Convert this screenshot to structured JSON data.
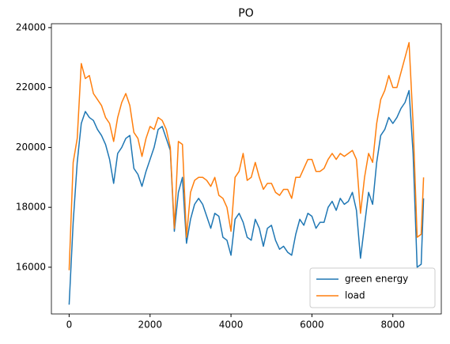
{
  "chart_data": {
    "type": "line",
    "title": "PO",
    "x": [
      0,
      100,
      200,
      300,
      400,
      500,
      600,
      700,
      800,
      900,
      1000,
      1100,
      1200,
      1300,
      1400,
      1500,
      1600,
      1700,
      1800,
      1900,
      2000,
      2100,
      2200,
      2300,
      2400,
      2500,
      2600,
      2700,
      2800,
      2900,
      3000,
      3100,
      3200,
      3300,
      3400,
      3500,
      3600,
      3700,
      3800,
      3900,
      4000,
      4100,
      4200,
      4300,
      4400,
      4500,
      4600,
      4700,
      4800,
      4900,
      5000,
      5100,
      5200,
      5300,
      5400,
      5500,
      5600,
      5700,
      5800,
      5900,
      6000,
      6100,
      6200,
      6300,
      6400,
      6500,
      6600,
      6700,
      6800,
      6900,
      7000,
      7100,
      7200,
      7300,
      7400,
      7500,
      7600,
      7700,
      7800,
      7900,
      8000,
      8100,
      8200,
      8300,
      8400,
      8500,
      8600,
      8700,
      8759
    ],
    "series": [
      {
        "name": "green energy",
        "color": "#1f77b4",
        "values": [
          14750,
          17500,
          19500,
          20800,
          21200,
          21000,
          20900,
          20600,
          20400,
          20100,
          19600,
          18800,
          19800,
          20000,
          20300,
          20400,
          19300,
          19100,
          18700,
          19200,
          19600,
          20000,
          20600,
          20700,
          20300,
          19900,
          17200,
          18500,
          19000,
          16800,
          17600,
          18100,
          18300,
          18100,
          17700,
          17300,
          17800,
          17700,
          17000,
          16900,
          16400,
          17600,
          17800,
          17500,
          17000,
          16900,
          17600,
          17300,
          16700,
          17300,
          17400,
          16900,
          16600,
          16700,
          16500,
          16400,
          17100,
          17600,
          17400,
          17800,
          17700,
          17300,
          17500,
          17500,
          18000,
          18200,
          17900,
          18300,
          18100,
          18200,
          18500,
          17900,
          16300,
          17400,
          18500,
          18100,
          19500,
          20400,
          20600,
          21000,
          20800,
          21000,
          21300,
          21500,
          21900,
          19800,
          16000,
          16100,
          18300
        ]
      },
      {
        "name": "load",
        "color": "#ff7f0e",
        "values": [
          15900,
          19500,
          20300,
          22800,
          22300,
          22400,
          21800,
          21600,
          21400,
          21000,
          20800,
          20200,
          21000,
          21500,
          21800,
          21400,
          20500,
          20300,
          19700,
          20300,
          20700,
          20600,
          21000,
          20900,
          20600,
          20000,
          17300,
          20200,
          20100,
          17000,
          18500,
          18900,
          19000,
          19000,
          18900,
          18700,
          19000,
          18400,
          18300,
          18000,
          17200,
          19000,
          19200,
          19800,
          18900,
          19000,
          19500,
          19000,
          18600,
          18800,
          18800,
          18500,
          18400,
          18600,
          18600,
          18300,
          19000,
          19000,
          19300,
          19600,
          19600,
          19200,
          19200,
          19300,
          19600,
          19800,
          19600,
          19800,
          19700,
          19800,
          19900,
          19600,
          17800,
          19000,
          19800,
          19500,
          20800,
          21600,
          21900,
          22400,
          22000,
          22000,
          22500,
          23000,
          23500,
          20800,
          17000,
          17100,
          19000
        ]
      }
    ],
    "xlim": [
      -438,
      9197
    ],
    "xticks": [
      0,
      2000,
      4000,
      6000,
      8000
    ],
    "ylim": [
      14440,
      24130
    ],
    "yticks": [
      16000,
      18000,
      20000,
      22000,
      24000
    ],
    "grid": false,
    "legend": "lower right"
  }
}
